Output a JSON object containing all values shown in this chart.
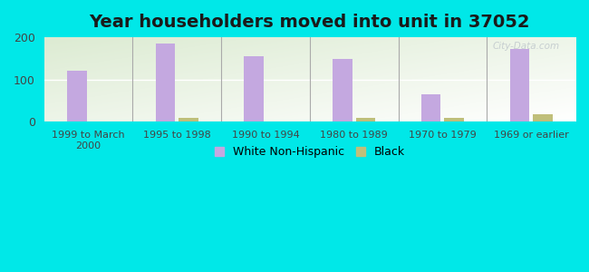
{
  "title": "Year householders moved into unit in 37052",
  "categories": [
    "1999 to March\n2000",
    "1995 to 1998",
    "1990 to 1994",
    "1980 to 1989",
    "1970 to 1979",
    "1969 or earlier"
  ],
  "white_values": [
    120,
    185,
    155,
    148,
    65,
    172
  ],
  "black_values": [
    0,
    8,
    0,
    8,
    8,
    18
  ],
  "white_color": "#c4a8e0",
  "black_color": "#c0bf7a",
  "ylim": [
    0,
    200
  ],
  "yticks": [
    0,
    100,
    200
  ],
  "background_outer": "#00e8e8",
  "bar_width": 0.22,
  "title_fontsize": 14,
  "legend_white": "White Non-Hispanic",
  "legend_black": "Black",
  "watermark": "City-Data.com"
}
